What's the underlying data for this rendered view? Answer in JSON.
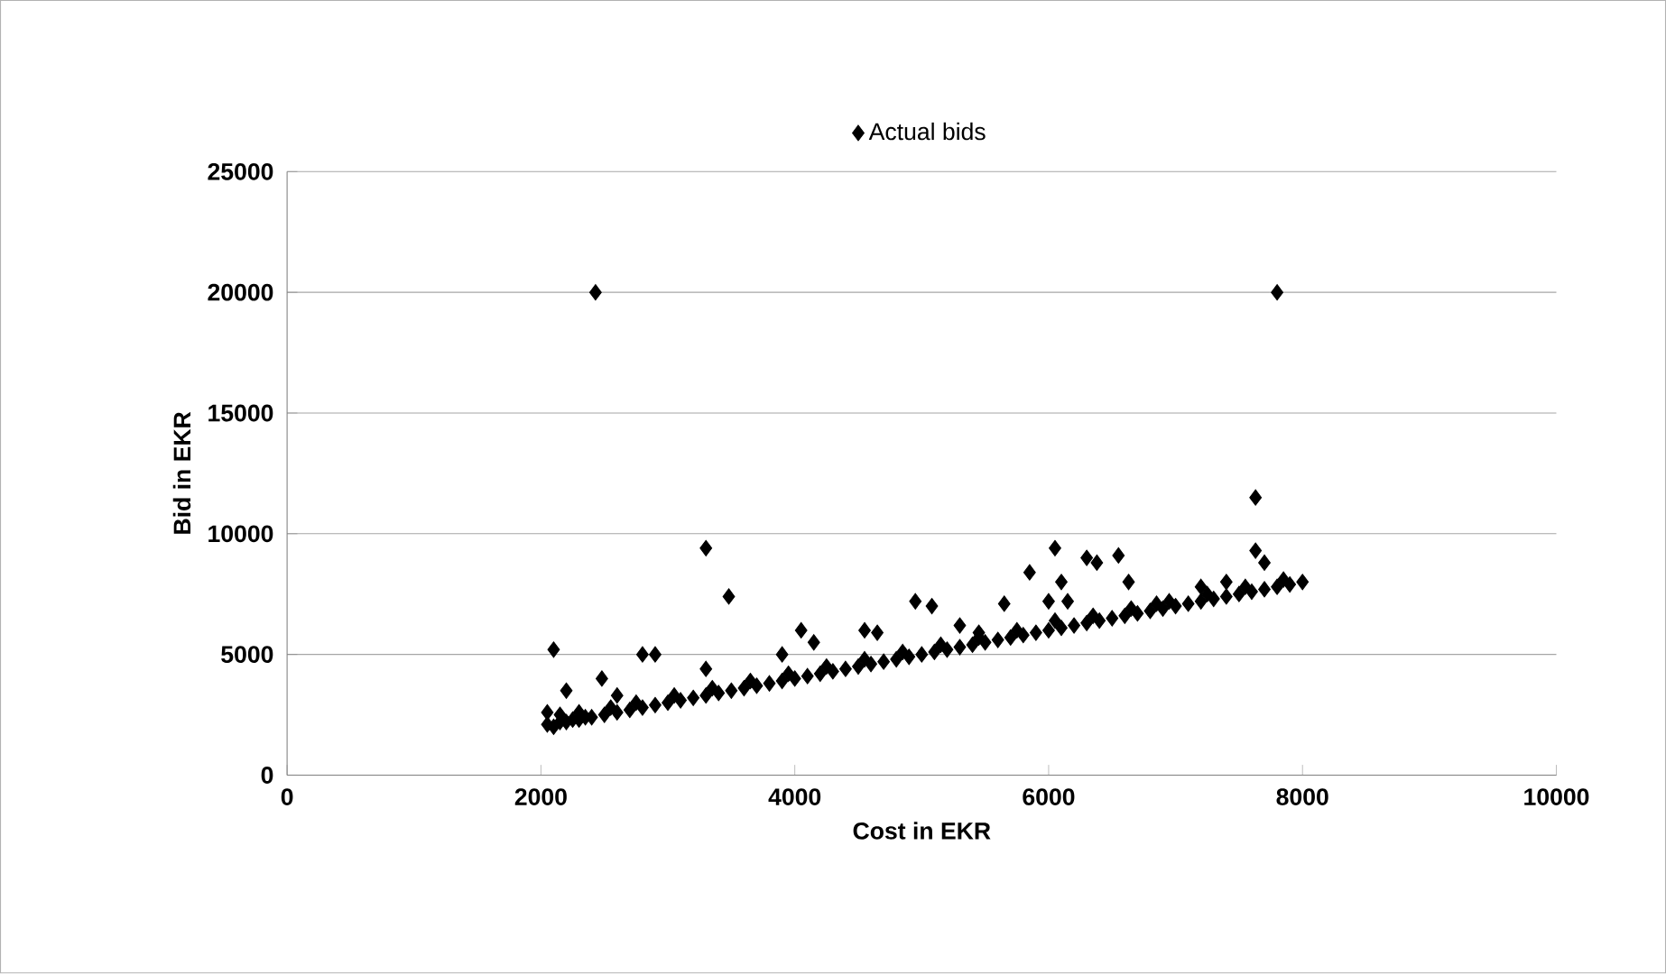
{
  "chart_data": {
    "type": "scatter",
    "xlabel": "Cost in EKR",
    "ylabel": "Bid in EKR",
    "xlim": [
      0,
      10000
    ],
    "ylim": [
      0,
      25000
    ],
    "xticks": [
      0,
      2000,
      4000,
      6000,
      8000,
      10000
    ],
    "yticks": [
      0,
      5000,
      10000,
      15000,
      20000,
      25000
    ],
    "grid": "y",
    "legend": "top",
    "marker": "diamond",
    "series": [
      {
        "name": "Actual bids",
        "color": "#000000",
        "x": [
          2050,
          2100,
          2150,
          2200,
          2250,
          2300,
          2350,
          2400,
          2500,
          2600,
          2700,
          2800,
          2900,
          3000,
          3100,
          3200,
          3300,
          3400,
          3500,
          3600,
          3700,
          3800,
          3900,
          4000,
          4100,
          4200,
          4300,
          4400,
          4500,
          4600,
          4700,
          4800,
          4900,
          5000,
          5100,
          5200,
          5300,
          5400,
          5500,
          5600,
          5700,
          5800,
          5900,
          6000,
          6100,
          6200,
          6300,
          6400,
          6500,
          6600,
          6700,
          6800,
          6900,
          7000,
          7100,
          7200,
          7300,
          7400,
          7500,
          7600,
          7700,
          7800,
          7900,
          8000,
          2150,
          2300,
          2550,
          2750,
          3050,
          3350,
          3650,
          3950,
          4250,
          4550,
          4850,
          5150,
          5450,
          5750,
          6050,
          6350,
          6650,
          6950,
          7250,
          7550,
          7850,
          2430,
          7800,
          7630,
          2100,
          3300,
          3480,
          2800,
          2900,
          4050,
          4150,
          4550,
          4650,
          4950,
          5080,
          5650,
          5850,
          6050,
          6300,
          6380,
          6550,
          6100,
          6150,
          6630,
          7630,
          7700,
          2480,
          2200,
          2600,
          3300,
          3900,
          5300,
          5450,
          6000,
          6850,
          7200,
          7400,
          2050
        ],
        "values": [
          2100,
          2000,
          2200,
          2200,
          2300,
          2300,
          2400,
          2400,
          2500,
          2600,
          2700,
          2800,
          2900,
          3000,
          3100,
          3200,
          3300,
          3400,
          3500,
          3600,
          3700,
          3800,
          3900,
          4000,
          4100,
          4200,
          4300,
          4400,
          4500,
          4600,
          4700,
          4800,
          4900,
          5000,
          5100,
          5200,
          5300,
          5400,
          5500,
          5600,
          5700,
          5800,
          5900,
          6000,
          6100,
          6200,
          6300,
          6400,
          6500,
          6600,
          6700,
          6800,
          6900,
          7000,
          7100,
          7200,
          7300,
          7400,
          7500,
          7600,
          7700,
          7800,
          7900,
          8000,
          2500,
          2600,
          2800,
          3000,
          3300,
          3600,
          3900,
          4200,
          4500,
          4800,
          5100,
          5400,
          5700,
          6000,
          6400,
          6600,
          6900,
          7200,
          7500,
          7800,
          8100,
          20000,
          20000,
          11500,
          5200,
          9400,
          7400,
          5000,
          5000,
          6000,
          5500,
          6000,
          5900,
          7200,
          7000,
          7100,
          8400,
          9400,
          9000,
          8800,
          9100,
          8000,
          7200,
          8000,
          9300,
          8800,
          4000,
          3500,
          3300,
          4400,
          5000,
          6200,
          5900,
          7200,
          7100,
          7800,
          8000,
          2600
        ]
      }
    ]
  }
}
